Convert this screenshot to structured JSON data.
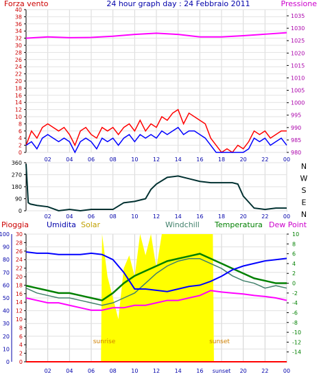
{
  "colors": {
    "wind": "#ff0000",
    "gust": "#0000ff",
    "pressure": "#ff00ff",
    "direction": "#003030",
    "humidity": "#0000ff",
    "solar": "#ffff00",
    "windchill": "#40806a",
    "temperature": "#008000",
    "dewpoint": "#ff00ff",
    "rain": "#ff0000",
    "axis_blue": "#0000aa",
    "axis_purple": "#aa00aa",
    "axis_green": "#008000",
    "sun_label": "#d08000"
  },
  "panel1": {
    "left_title": "Forza vento",
    "center_title": "24 hour graph day : 24 Febbraio 2011",
    "right_title": "Pressione",
    "wind_axis": {
      "min": 0,
      "max": 40,
      "ticks": [
        "0",
        "2",
        "4",
        "6",
        "8",
        "10",
        "12",
        "14",
        "16",
        "18",
        "20",
        "22",
        "24",
        "26",
        "28",
        "30",
        "32",
        "34",
        "36",
        "38",
        "40"
      ]
    },
    "pressure_axis": {
      "min": 980,
      "max": 1037.5,
      "ticks": [
        "980",
        "985",
        "990",
        "995",
        "1000",
        "1005",
        "1010",
        "1015",
        "1020",
        "1025",
        "1030",
        "1035"
      ]
    },
    "x_ticks": [
      "02",
      "04",
      "06",
      "08",
      "10",
      "12",
      "14",
      "16",
      "18",
      "20",
      "22",
      "00"
    ]
  },
  "panel2": {
    "dir_axis": {
      "min": 0,
      "max": 360,
      "ticks": [
        "0",
        "90",
        "180",
        "270",
        "360"
      ]
    },
    "dir_labels": [
      "N",
      "W",
      "S",
      "E",
      "N"
    ],
    "x_ticks": [
      "02",
      "04",
      "06",
      "08",
      "10",
      "12",
      "14",
      "16",
      "18",
      "20",
      "22",
      "00"
    ]
  },
  "panel3": {
    "title_rain": "Pioggia",
    "title_humidity": "Umidita",
    "title_solar": "Solar",
    "title_windchill": "Windchill",
    "title_temperature": "Temperatura",
    "title_dewpoint": "Dew Point",
    "humidity_axis": {
      "min": 0,
      "max": 100,
      "ticks": [
        "0",
        "10",
        "20",
        "30",
        "40",
        "50",
        "60",
        "70",
        "80",
        "90",
        "100"
      ]
    },
    "rain_axis": {
      "min": 0,
      "max": 30,
      "ticks": [
        "0",
        "2",
        "4",
        "6",
        "8",
        "10",
        "12",
        "14",
        "16",
        "18",
        "20",
        "22",
        "24",
        "26",
        "28",
        "30"
      ]
    },
    "temp_axis": {
      "min": -16,
      "max": 10,
      "ticks": [
        "-14",
        "-12",
        "-10",
        "-8",
        "-6",
        "-4",
        "-2",
        "0",
        "2",
        "4",
        "6",
        "8",
        "10"
      ]
    },
    "x_ticks": [
      "02",
      "04",
      "06",
      "08",
      "10",
      "12",
      "14",
      "16",
      "sunset",
      "20",
      "22",
      "00"
    ],
    "sunrise_label": "sunrise",
    "sunset_label": "sunset"
  },
  "chart_data": {
    "type": "line",
    "x_unit": "hour of day (0-24)",
    "panels": [
      {
        "name": "wind",
        "series": [
          {
            "name": "Forza vento",
            "x": [
              0,
              0.5,
              1,
              1.5,
              2,
              2.5,
              3,
              3.5,
              4,
              4.5,
              5,
              5.5,
              6,
              6.5,
              7,
              7.5,
              8,
              8.5,
              9,
              9.5,
              10,
              10.5,
              11,
              11.5,
              12,
              12.5,
              13,
              13.5,
              14,
              14.5,
              15,
              15.5,
              16,
              16.5,
              17,
              17.5,
              18,
              18.5,
              19,
              19.5,
              20,
              20.5,
              21,
              21.5,
              22,
              22.5,
              23,
              23.5,
              24
            ],
            "values": [
              2,
              6,
              4,
              7,
              8,
              7,
              6,
              7,
              5,
              2,
              6,
              7,
              5,
              4,
              7,
              6,
              7,
              5,
              7,
              8,
              6,
              9,
              6,
              8,
              7,
              10,
              9,
              11,
              12,
              8,
              11,
              10,
              9,
              8,
              4,
              2,
              0,
              1,
              0,
              2,
              1,
              3,
              6,
              5,
              6,
              4,
              5,
              6,
              6
            ]
          },
          {
            "name": "Raffica",
            "x": [
              0,
              0.5,
              1,
              1.5,
              2,
              2.5,
              3,
              3.5,
              4,
              4.5,
              5,
              5.5,
              6,
              6.5,
              7,
              7.5,
              8,
              8.5,
              9,
              9.5,
              10,
              10.5,
              11,
              11.5,
              12,
              12.5,
              13,
              13.5,
              14,
              14.5,
              15,
              15.5,
              16,
              16.5,
              17,
              17.5,
              18,
              18.5,
              19,
              19.5,
              20,
              20.5,
              21,
              21.5,
              22,
              22.5,
              23,
              23.5,
              24
            ],
            "values": [
              2,
              3,
              1,
              4,
              5,
              4,
              3,
              4,
              3,
              0,
              3,
              4,
              3,
              1,
              4,
              3,
              4,
              2,
              4,
              5,
              3,
              5,
              4,
              5,
              4,
              6,
              5,
              6,
              7,
              5,
              6,
              6,
              5,
              4,
              2,
              0,
              0,
              0,
              0,
              0,
              0,
              1,
              4,
              3,
              4,
              2,
              3,
              4,
              2
            ]
          }
        ]
      },
      {
        "name": "pressure",
        "series": [
          {
            "name": "Pressione",
            "x": [
              0,
              2,
              4,
              6,
              8,
              10,
              12,
              14,
              16,
              18,
              20,
              22,
              24
            ],
            "values": [
              1026,
              1026.5,
              1026.2,
              1026.3,
              1026.8,
              1027.5,
              1028,
              1027.5,
              1026.5,
              1026.5,
              1027,
              1027.6,
              1028.2
            ]
          }
        ]
      },
      {
        "name": "wind direction",
        "series": [
          {
            "name": "Direzione",
            "x": [
              0,
              0.2,
              0.4,
              1,
              2,
              3,
              4,
              5,
              6,
              7,
              8,
              9,
              10,
              11,
              11.5,
              12,
              13,
              14,
              15,
              16,
              17,
              18,
              19,
              19.5,
              20,
              21,
              22,
              23,
              24
            ],
            "values": [
              350,
              60,
              50,
              40,
              30,
              0,
              10,
              0,
              10,
              10,
              10,
              60,
              70,
              90,
              160,
              200,
              250,
              260,
              240,
              220,
              210,
              210,
              210,
              200,
              110,
              20,
              10,
              20,
              20
            ]
          }
        ]
      },
      {
        "name": "humidity",
        "series": [
          {
            "name": "Umidita",
            "x": [
              0,
              1,
              2,
              3,
              4,
              5,
              6,
              7,
              8,
              9,
              10,
              11,
              12,
              13,
              14,
              15,
              16,
              17,
              18,
              19,
              20,
              21,
              22,
              23,
              24
            ],
            "values": [
              86,
              85,
              85,
              84,
              84,
              84,
              85,
              84,
              80,
              70,
              57,
              57,
              56,
              55,
              57,
              59,
              60,
              63,
              67,
              72,
              75,
              77,
              79,
              80,
              81
            ]
          }
        ]
      },
      {
        "name": "temperature",
        "series": [
          {
            "name": "Temperatura",
            "x": [
              0,
              1,
              2,
              3,
              4,
              5,
              6,
              7,
              8,
              9,
              10,
              11,
              12,
              13,
              14,
              15,
              16,
              17,
              18,
              19,
              20,
              21,
              22,
              23,
              24
            ],
            "values": [
              -0.5,
              -1,
              -1.5,
              -2,
              -2,
              -2.5,
              -3,
              -3.5,
              -2,
              0,
              1.5,
              2.5,
              3.5,
              4.5,
              5,
              5.5,
              6,
              5,
              4,
              3,
              2,
              1,
              0.5,
              0,
              0
            ]
          },
          {
            "name": "Windchill",
            "x": [
              0,
              1,
              2,
              3,
              4,
              5,
              6,
              7,
              8,
              9,
              10,
              11,
              12,
              13,
              14,
              15,
              16,
              17,
              18,
              19,
              20,
              21,
              22,
              23,
              24
            ],
            "values": [
              -1,
              -2,
              -2.5,
              -3,
              -3,
              -3.5,
              -4,
              -4.5,
              -4,
              -3,
              -2,
              0,
              2,
              3.5,
              4.5,
              5,
              5,
              4,
              3,
              1.5,
              0.5,
              0,
              -1,
              -0.5,
              -1
            ]
          },
          {
            "name": "Dew Point",
            "x": [
              0,
              1,
              2,
              3,
              4,
              5,
              6,
              7,
              8,
              9,
              10,
              11,
              12,
              13,
              14,
              15,
              16,
              17,
              18,
              19,
              20,
              21,
              22,
              23,
              24
            ],
            "values": [
              -3,
              -3.5,
              -4,
              -4,
              -4.5,
              -5,
              -5.5,
              -5.5,
              -5,
              -5,
              -4.5,
              -4.5,
              -4,
              -3.5,
              -3.5,
              -3,
              -2.5,
              -1.5,
              -1.8,
              -2,
              -2.2,
              -2.5,
              -2.7,
              -3,
              -3.5
            ]
          }
        ]
      },
      {
        "name": "solar",
        "series": [
          {
            "name": "Solar",
            "x": [
              0,
              6.9,
              7,
              7.5,
              8,
              8.5,
              9,
              9.5,
              10,
              10.5,
              11,
              11.5,
              12,
              12.5,
              13,
              13.5,
              14,
              14.5,
              15,
              15.5,
              16,
              16.5,
              17,
              17.2,
              17.3,
              24
            ],
            "values": [
              0,
              0,
              30,
              20,
              15,
              10,
              22,
              25,
              20,
              30,
              25,
              30,
              22,
              30,
              30,
              30,
              30,
              30,
              30,
              30,
              30,
              30,
              30,
              30,
              0,
              0
            ]
          }
        ]
      },
      {
        "name": "rain",
        "series": [
          {
            "name": "Pioggia",
            "x": [
              0,
              24
            ],
            "values": [
              0,
              0
            ]
          }
        ]
      }
    ]
  }
}
